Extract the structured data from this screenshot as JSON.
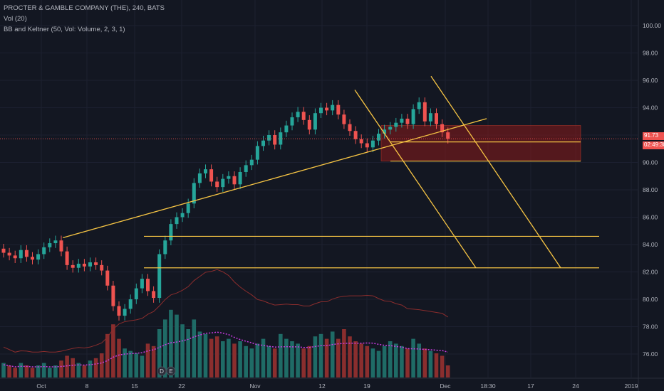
{
  "header": {
    "symbol_line": "PROCTER & GAMBLE COMPANY (THE), 240, BATS",
    "indicator_vol": "Vol (20)",
    "indicator_bb": "BB and Keltner (50, Vol: Volume, 2, 3, 1)"
  },
  "price_axis": {
    "ticks": [
      "100.00",
      "98.00",
      "96.00",
      "94.00",
      "92.00",
      "90.00",
      "88.00",
      "86.00",
      "84.00",
      "82.00",
      "80.00",
      "78.00",
      "76.00"
    ],
    "current_price": "91.73",
    "countdown": "02:49:38",
    "current_color": "#ef5350"
  },
  "time_axis": {
    "labels": [
      "Oct",
      "8",
      "15",
      "22",
      "Nov",
      "12",
      "19",
      "Dec",
      "18:30",
      "17",
      "24",
      "2019"
    ]
  },
  "markers": [
    "D",
    "E"
  ],
  "colors": {
    "up": "#26a69a",
    "down": "#ef5350",
    "drawing": "#f7c544",
    "zone": "#8b1a1a",
    "bb": "#8b2d2d",
    "kelt": "#c83be0"
  },
  "chart_data": {
    "type": "candlestick",
    "timeframe": "240",
    "ylim": [
      74.5,
      101.5
    ],
    "price_y_for_ticks": [
      100,
      98,
      96,
      94,
      92,
      90,
      88,
      86,
      84,
      82,
      80,
      78,
      76
    ],
    "ohlc_close_series": [
      83.4,
      83.2,
      83.0,
      83.6,
      83.1,
      82.9,
      83.3,
      83.8,
      84.1,
      84.3,
      83.5,
      82.5,
      82.3,
      82.6,
      82.4,
      82.7,
      82.5,
      82.1,
      81.0,
      79.5,
      78.8,
      79.3,
      80.0,
      80.8,
      81.5,
      80.6,
      80.1,
      83.3,
      84.3,
      85.5,
      86.0,
      86.3,
      87.0,
      88.5,
      89.2,
      89.5,
      88.6,
      88.2,
      88.8,
      89.0,
      88.4,
      89.3,
      89.8,
      90.2,
      91.2,
      91.6,
      92.0,
      91.3,
      92.2,
      92.7,
      93.3,
      93.7,
      93.1,
      92.4,
      93.6,
      94.0,
      93.8,
      94.2,
      93.5,
      92.8,
      92.3,
      91.7,
      91.4,
      91.1,
      91.6,
      92.1,
      92.4,
      92.6,
      92.9,
      93.2,
      92.8,
      93.9,
      94.4,
      93.0,
      93.6,
      92.8,
      92.2,
      91.73
    ],
    "volume_series": [
      6,
      5,
      4,
      6,
      5,
      4,
      5,
      6,
      4,
      5,
      7,
      9,
      8,
      6,
      5,
      7,
      8,
      10,
      18,
      22,
      16,
      12,
      11,
      10,
      9,
      14,
      13,
      20,
      24,
      28,
      26,
      22,
      20,
      24,
      19,
      18,
      16,
      17,
      15,
      16,
      14,
      15,
      13,
      12,
      14,
      16,
      13,
      12,
      18,
      16,
      15,
      14,
      12,
      13,
      17,
      18,
      16,
      19,
      16,
      20,
      17,
      15,
      14,
      13,
      12,
      11,
      13,
      15,
      14,
      13,
      12,
      16,
      14,
      12,
      11,
      10,
      9,
      5
    ],
    "annotations": {
      "rising_trendline": [
        [
          88.3,
          84.5
        ],
        [
          683,
          93.2
        ]
      ],
      "falling_trendline_1": [
        [
          498,
          95.3
        ],
        [
          668,
          82.3
        ]
      ],
      "falling_trendline_2": [
        [
          605,
          96.3
        ],
        [
          787,
          82.3
        ]
      ],
      "horizontal_lines": [
        91.5,
        90.1,
        84.6,
        82.3
      ],
      "resistance_zone": [
        90.1,
        92.7
      ]
    }
  }
}
